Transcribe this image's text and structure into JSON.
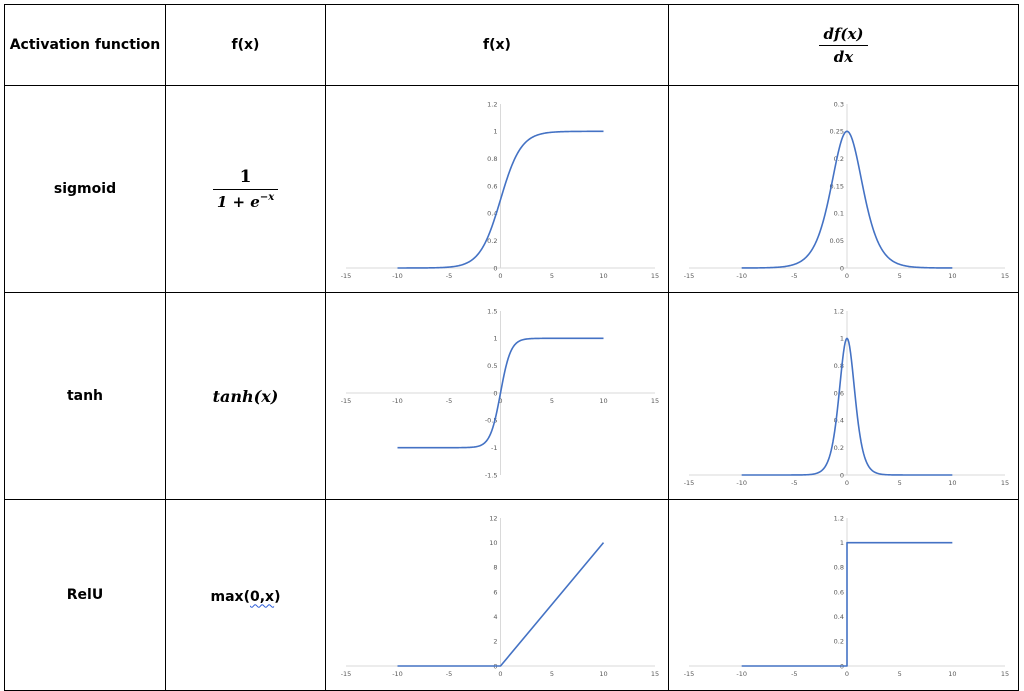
{
  "header": {
    "col1": "Activation function",
    "col2": "f(x)",
    "col3": "f(x)",
    "col4_num": "df(x)",
    "col4_den": "dx"
  },
  "rows": [
    {
      "name": "sigmoid",
      "formula_num": "1",
      "formula_den_base": "1 + e",
      "formula_den_exp": "−x"
    },
    {
      "name": "tanh",
      "formula": "tanh(x)"
    },
    {
      "name": "RelU",
      "formula_prefix": "max(",
      "formula_squiggle": "0,x",
      "formula_suffix": ")"
    }
  ],
  "style": {
    "line_color": "#4472C4",
    "axis_color": "#D9D9D9",
    "tick_label_color": "#595959"
  },
  "chart_data": [
    {
      "id": "sigmoid-f",
      "type": "line",
      "function": "sigmoid",
      "xlim": [
        -15,
        15
      ],
      "ylim": [
        0,
        1.2
      ],
      "xticks": [
        -15,
        -10,
        -5,
        0,
        5,
        10,
        15
      ],
      "yticks": [
        0,
        0.2,
        0.4,
        0.6,
        0.8,
        1,
        1.2
      ],
      "ytick_labels": [
        "0",
        "0.2",
        "0.4",
        "0.6",
        "0.8",
        "1",
        "1.2"
      ],
      "x_domain": [
        -10,
        10
      ]
    },
    {
      "id": "sigmoid-df",
      "type": "line",
      "function": "sigmoid-derivative",
      "xlim": [
        -15,
        15
      ],
      "ylim": [
        0,
        0.3
      ],
      "xticks": [
        -15,
        -10,
        -5,
        0,
        5,
        10,
        15
      ],
      "yticks": [
        0,
        0.05,
        0.1,
        0.15,
        0.2,
        0.25,
        0.3
      ],
      "ytick_labels": [
        "0",
        "0.05",
        "0.1",
        "0.15",
        "0.2",
        "0.25",
        "0.3"
      ],
      "x_domain": [
        -10,
        10
      ]
    },
    {
      "id": "tanh-f",
      "type": "line",
      "function": "tanh",
      "xlim": [
        -15,
        15
      ],
      "ylim": [
        -1.5,
        1.5
      ],
      "xticks": [
        -15,
        -10,
        -5,
        0,
        5,
        10,
        15
      ],
      "yticks": [
        -1.5,
        -1,
        -0.5,
        0,
        0.5,
        1,
        1.5
      ],
      "ytick_labels": [
        "-1.5",
        "-1",
        "-0.5",
        "0",
        "0.5",
        "1",
        "1.5"
      ],
      "x_domain": [
        -10,
        10
      ]
    },
    {
      "id": "tanh-df",
      "type": "line",
      "function": "tanh-derivative",
      "xlim": [
        -15,
        15
      ],
      "ylim": [
        0,
        1.2
      ],
      "xticks": [
        -15,
        -10,
        -5,
        0,
        5,
        10,
        15
      ],
      "yticks": [
        0,
        0.2,
        0.4,
        0.6,
        0.8,
        1,
        1.2
      ],
      "ytick_labels": [
        "0",
        "0.2",
        "0.4",
        "0.6",
        "0.8",
        "1",
        "1.2"
      ],
      "x_domain": [
        -10,
        10
      ]
    },
    {
      "id": "relu-f",
      "type": "line",
      "function": "relu",
      "xlim": [
        -15,
        15
      ],
      "ylim": [
        0,
        12
      ],
      "xticks": [
        -15,
        -10,
        -5,
        0,
        5,
        10,
        15
      ],
      "yticks": [
        0,
        2,
        4,
        6,
        8,
        10,
        12
      ],
      "ytick_labels": [
        "0",
        "2",
        "4",
        "6",
        "8",
        "10",
        "12"
      ],
      "x_domain": [
        -10,
        10
      ]
    },
    {
      "id": "relu-df",
      "type": "line",
      "function": "relu-derivative",
      "xlim": [
        -15,
        15
      ],
      "ylim": [
        0,
        1.2
      ],
      "xticks": [
        -15,
        -10,
        -5,
        0,
        5,
        10,
        15
      ],
      "yticks": [
        0,
        0.2,
        0.4,
        0.6,
        0.8,
        1,
        1.2
      ],
      "ytick_labels": [
        "0",
        "0.2",
        "0.4",
        "0.6",
        "0.8",
        "1",
        "1.2"
      ],
      "x_domain": [
        -10,
        10
      ]
    }
  ]
}
